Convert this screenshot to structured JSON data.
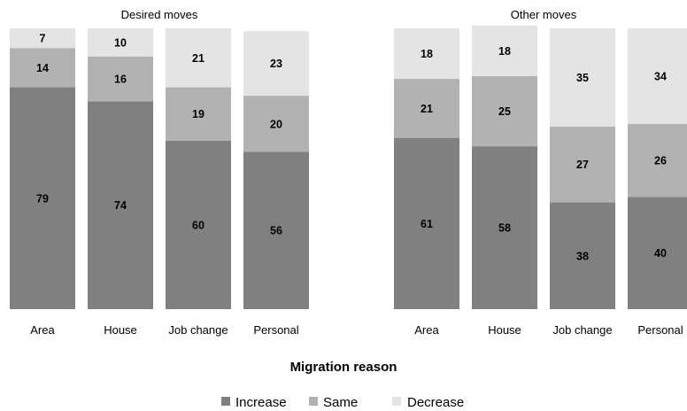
{
  "chart_data": {
    "type": "bar",
    "stacked": true,
    "xlabel": "Migration reason",
    "legend": {
      "position": "bottom",
      "entries": [
        {
          "name": "Increase",
          "color": "#808080"
        },
        {
          "name": "Same",
          "color": "#b2b2b2"
        },
        {
          "name": "Decrease",
          "color": "#e4e4e4"
        }
      ]
    },
    "ylim": [
      0,
      100
    ],
    "panels": [
      {
        "title": "Desired moves",
        "categories": [
          "Area",
          "House",
          "Job change",
          "Personal"
        ],
        "series": [
          {
            "name": "Increase",
            "values": [
              79,
              74,
              60,
              56
            ]
          },
          {
            "name": "Same",
            "values": [
              14,
              16,
              19,
              20
            ]
          },
          {
            "name": "Decrease",
            "values": [
              7,
              10,
              21,
              23
            ]
          }
        ]
      },
      {
        "title": "Other moves",
        "categories": [
          "Area",
          "House",
          "Job change",
          "Personal"
        ],
        "series": [
          {
            "name": "Increase",
            "values": [
              61,
              58,
              38,
              40
            ]
          },
          {
            "name": "Same",
            "values": [
              21,
              25,
              27,
              26
            ]
          },
          {
            "name": "Decrease",
            "values": [
              18,
              18,
              35,
              34
            ]
          }
        ]
      }
    ]
  }
}
